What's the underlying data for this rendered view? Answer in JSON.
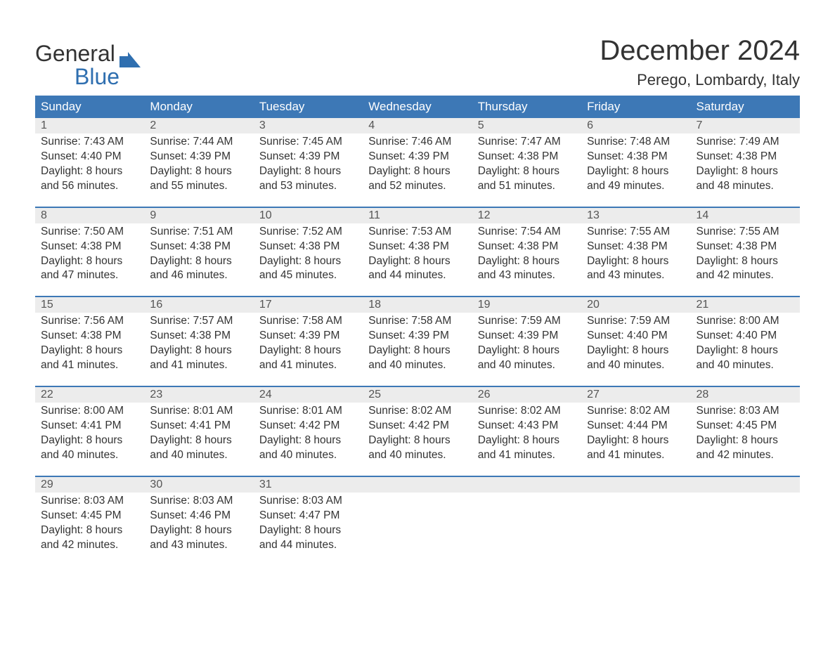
{
  "brand": {
    "word1": "General",
    "word2": "Blue",
    "word2_color": "#2f6fb0",
    "logo_color": "#2f6fb0"
  },
  "title": "December 2024",
  "location": "Perego, Lombardy, Italy",
  "colors": {
    "header_bg": "#3d78b6",
    "header_text": "#ffffff",
    "daynum_bg": "#ececec",
    "week_sep": "#3d78b6",
    "text": "#333333",
    "page_bg": "#ffffff"
  },
  "day_headers": [
    "Sunday",
    "Monday",
    "Tuesday",
    "Wednesday",
    "Thursday",
    "Friday",
    "Saturday"
  ],
  "weeks": [
    [
      {
        "n": "1",
        "sunrise": "7:43 AM",
        "sunset": "4:40 PM",
        "dl1": "Daylight: 8 hours",
        "dl2": "and 56 minutes."
      },
      {
        "n": "2",
        "sunrise": "7:44 AM",
        "sunset": "4:39 PM",
        "dl1": "Daylight: 8 hours",
        "dl2": "and 55 minutes."
      },
      {
        "n": "3",
        "sunrise": "7:45 AM",
        "sunset": "4:39 PM",
        "dl1": "Daylight: 8 hours",
        "dl2": "and 53 minutes."
      },
      {
        "n": "4",
        "sunrise": "7:46 AM",
        "sunset": "4:39 PM",
        "dl1": "Daylight: 8 hours",
        "dl2": "and 52 minutes."
      },
      {
        "n": "5",
        "sunrise": "7:47 AM",
        "sunset": "4:38 PM",
        "dl1": "Daylight: 8 hours",
        "dl2": "and 51 minutes."
      },
      {
        "n": "6",
        "sunrise": "7:48 AM",
        "sunset": "4:38 PM",
        "dl1": "Daylight: 8 hours",
        "dl2": "and 49 minutes."
      },
      {
        "n": "7",
        "sunrise": "7:49 AM",
        "sunset": "4:38 PM",
        "dl1": "Daylight: 8 hours",
        "dl2": "and 48 minutes."
      }
    ],
    [
      {
        "n": "8",
        "sunrise": "7:50 AM",
        "sunset": "4:38 PM",
        "dl1": "Daylight: 8 hours",
        "dl2": "and 47 minutes."
      },
      {
        "n": "9",
        "sunrise": "7:51 AM",
        "sunset": "4:38 PM",
        "dl1": "Daylight: 8 hours",
        "dl2": "and 46 minutes."
      },
      {
        "n": "10",
        "sunrise": "7:52 AM",
        "sunset": "4:38 PM",
        "dl1": "Daylight: 8 hours",
        "dl2": "and 45 minutes."
      },
      {
        "n": "11",
        "sunrise": "7:53 AM",
        "sunset": "4:38 PM",
        "dl1": "Daylight: 8 hours",
        "dl2": "and 44 minutes."
      },
      {
        "n": "12",
        "sunrise": "7:54 AM",
        "sunset": "4:38 PM",
        "dl1": "Daylight: 8 hours",
        "dl2": "and 43 minutes."
      },
      {
        "n": "13",
        "sunrise": "7:55 AM",
        "sunset": "4:38 PM",
        "dl1": "Daylight: 8 hours",
        "dl2": "and 43 minutes."
      },
      {
        "n": "14",
        "sunrise": "7:55 AM",
        "sunset": "4:38 PM",
        "dl1": "Daylight: 8 hours",
        "dl2": "and 42 minutes."
      }
    ],
    [
      {
        "n": "15",
        "sunrise": "7:56 AM",
        "sunset": "4:38 PM",
        "dl1": "Daylight: 8 hours",
        "dl2": "and 41 minutes."
      },
      {
        "n": "16",
        "sunrise": "7:57 AM",
        "sunset": "4:38 PM",
        "dl1": "Daylight: 8 hours",
        "dl2": "and 41 minutes."
      },
      {
        "n": "17",
        "sunrise": "7:58 AM",
        "sunset": "4:39 PM",
        "dl1": "Daylight: 8 hours",
        "dl2": "and 41 minutes."
      },
      {
        "n": "18",
        "sunrise": "7:58 AM",
        "sunset": "4:39 PM",
        "dl1": "Daylight: 8 hours",
        "dl2": "and 40 minutes."
      },
      {
        "n": "19",
        "sunrise": "7:59 AM",
        "sunset": "4:39 PM",
        "dl1": "Daylight: 8 hours",
        "dl2": "and 40 minutes."
      },
      {
        "n": "20",
        "sunrise": "7:59 AM",
        "sunset": "4:40 PM",
        "dl1": "Daylight: 8 hours",
        "dl2": "and 40 minutes."
      },
      {
        "n": "21",
        "sunrise": "8:00 AM",
        "sunset": "4:40 PM",
        "dl1": "Daylight: 8 hours",
        "dl2": "and 40 minutes."
      }
    ],
    [
      {
        "n": "22",
        "sunrise": "8:00 AM",
        "sunset": "4:41 PM",
        "dl1": "Daylight: 8 hours",
        "dl2": "and 40 minutes."
      },
      {
        "n": "23",
        "sunrise": "8:01 AM",
        "sunset": "4:41 PM",
        "dl1": "Daylight: 8 hours",
        "dl2": "and 40 minutes."
      },
      {
        "n": "24",
        "sunrise": "8:01 AM",
        "sunset": "4:42 PM",
        "dl1": "Daylight: 8 hours",
        "dl2": "and 40 minutes."
      },
      {
        "n": "25",
        "sunrise": "8:02 AM",
        "sunset": "4:42 PM",
        "dl1": "Daylight: 8 hours",
        "dl2": "and 40 minutes."
      },
      {
        "n": "26",
        "sunrise": "8:02 AM",
        "sunset": "4:43 PM",
        "dl1": "Daylight: 8 hours",
        "dl2": "and 41 minutes."
      },
      {
        "n": "27",
        "sunrise": "8:02 AM",
        "sunset": "4:44 PM",
        "dl1": "Daylight: 8 hours",
        "dl2": "and 41 minutes."
      },
      {
        "n": "28",
        "sunrise": "8:03 AM",
        "sunset": "4:45 PM",
        "dl1": "Daylight: 8 hours",
        "dl2": "and 42 minutes."
      }
    ],
    [
      {
        "n": "29",
        "sunrise": "8:03 AM",
        "sunset": "4:45 PM",
        "dl1": "Daylight: 8 hours",
        "dl2": "and 42 minutes."
      },
      {
        "n": "30",
        "sunrise": "8:03 AM",
        "sunset": "4:46 PM",
        "dl1": "Daylight: 8 hours",
        "dl2": "and 43 minutes."
      },
      {
        "n": "31",
        "sunrise": "8:03 AM",
        "sunset": "4:47 PM",
        "dl1": "Daylight: 8 hours",
        "dl2": "and 44 minutes."
      },
      null,
      null,
      null,
      null
    ]
  ],
  "labels": {
    "sunrise_prefix": "Sunrise: ",
    "sunset_prefix": "Sunset: "
  }
}
